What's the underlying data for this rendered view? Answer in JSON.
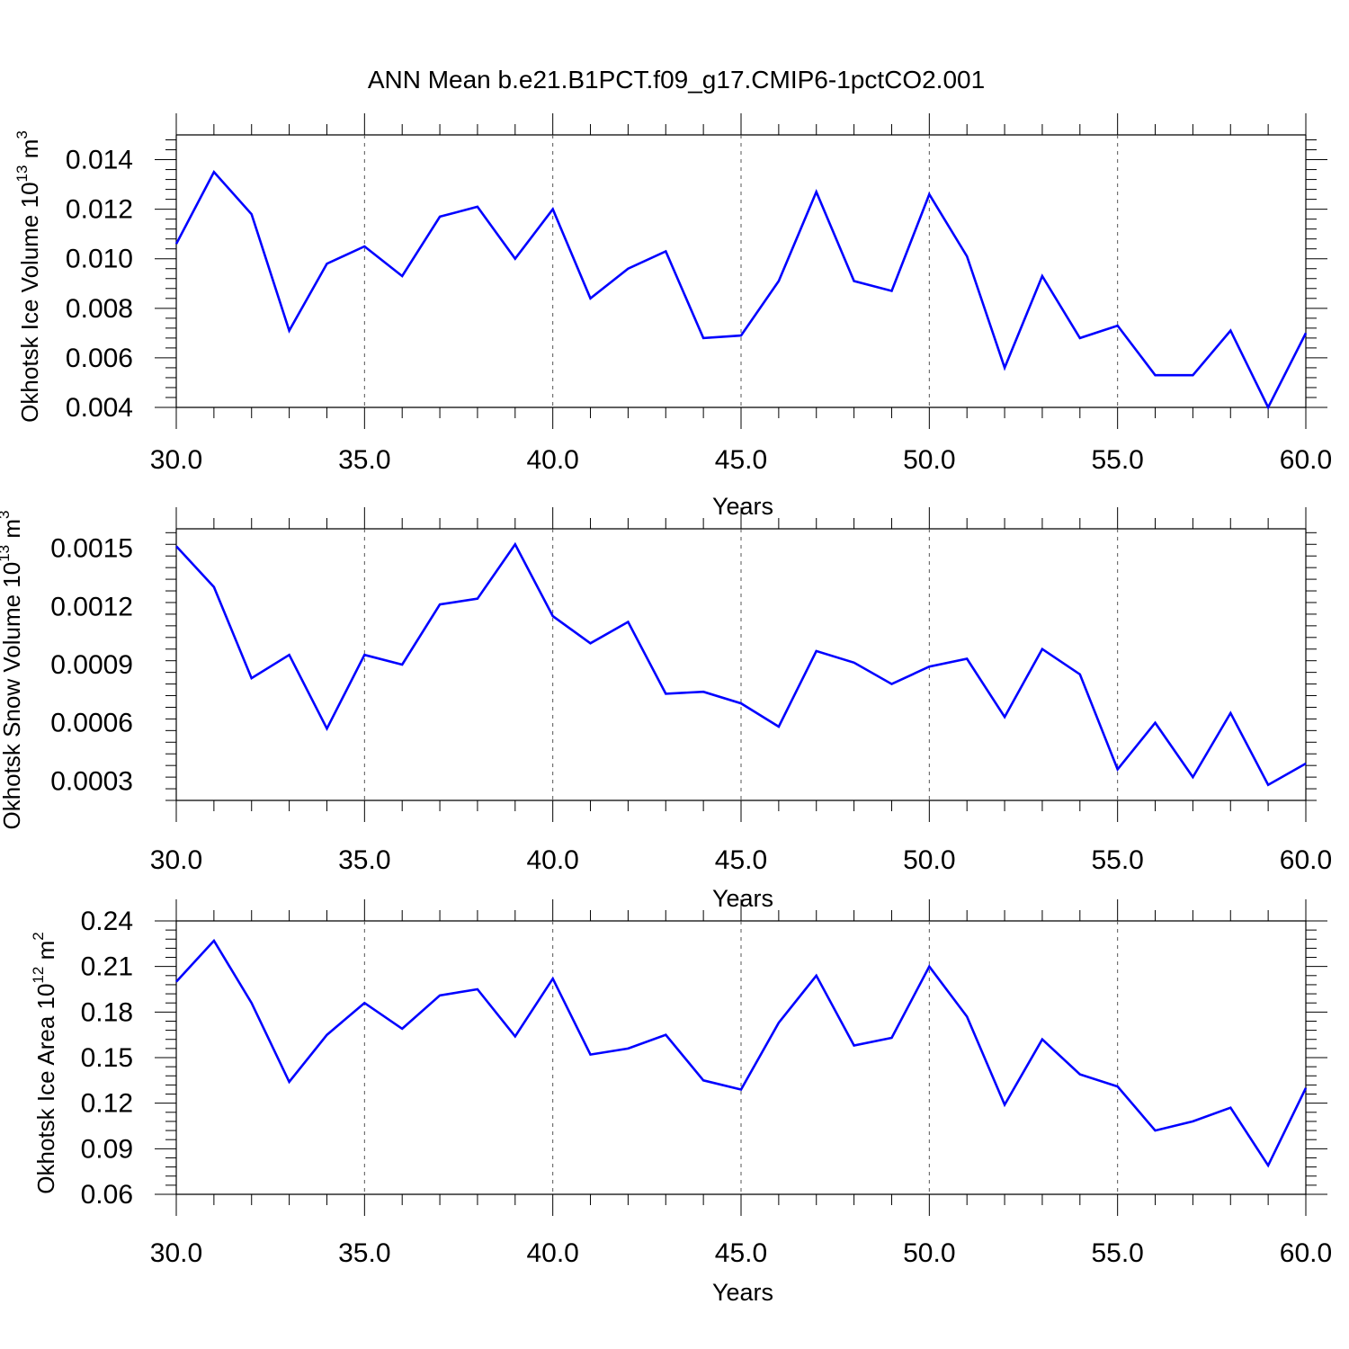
{
  "title": "ANN Mean b.e21.B1PCT.f09_g17.CMIP6-1pctCO2.001",
  "colors": {
    "line": "#0000ff",
    "axis": "#000000",
    "grid": "#555555"
  },
  "chart_data": [
    {
      "type": "line",
      "xlabel": "Years",
      "ylabel": {
        "text": "Okhotsk Ice Volume 10",
        "sup_power": "13",
        "unit": " m",
        "sup_unit": "3"
      },
      "x_ticks": [
        "30.0",
        "35.0",
        "40.0",
        "45.0",
        "50.0",
        "55.0",
        "60.0"
      ],
      "y_ticks": [
        "0.004",
        "0.006",
        "0.008",
        "0.010",
        "0.012",
        "0.014"
      ],
      "xlim": [
        30,
        60
      ],
      "ylim": [
        0.004,
        0.015
      ],
      "grid_x": true,
      "series": [
        {
          "x": [
            30,
            31,
            32,
            33,
            34,
            35,
            36,
            37,
            38,
            39,
            40,
            41,
            42,
            43,
            44,
            45,
            46,
            47,
            48,
            49,
            50,
            51,
            52,
            53,
            54,
            55,
            56,
            57,
            58,
            59,
            60
          ],
          "values": [
            0.0106,
            0.0135,
            0.0118,
            0.0071,
            0.0098,
            0.0105,
            0.0093,
            0.0117,
            0.0121,
            0.01,
            0.012,
            0.0084,
            0.0096,
            0.0103,
            0.0068,
            0.0069,
            0.0091,
            0.0127,
            0.0091,
            0.0087,
            0.0126,
            0.0101,
            0.0056,
            0.0093,
            0.0068,
            0.0073,
            0.0053,
            0.0053,
            0.0071,
            0.004,
            0.007
          ]
        }
      ]
    },
    {
      "type": "line",
      "xlabel": "Years",
      "ylabel": {
        "text": "Okhotsk Snow Volume 10",
        "sup_power": "13",
        "unit": " m",
        "sup_unit": "3"
      },
      "x_ticks": [
        "30.0",
        "35.0",
        "40.0",
        "45.0",
        "50.0",
        "55.0",
        "60.0"
      ],
      "y_ticks": [
        "0.0003",
        "0.0006",
        "0.0009",
        "0.0012",
        "0.0015"
      ],
      "xlim": [
        30,
        60
      ],
      "ylim": [
        0.0002,
        0.0016
      ],
      "grid_x": true,
      "series": [
        {
          "x": [
            30,
            31,
            32,
            33,
            34,
            35,
            36,
            37,
            38,
            39,
            40,
            41,
            42,
            43,
            44,
            45,
            46,
            47,
            48,
            49,
            50,
            51,
            52,
            53,
            54,
            55,
            56,
            57,
            58,
            59,
            60
          ],
          "values": [
            0.00151,
            0.0013,
            0.00083,
            0.00095,
            0.00057,
            0.00095,
            0.0009,
            0.00121,
            0.00124,
            0.00152,
            0.00115,
            0.00101,
            0.00112,
            0.00075,
            0.00076,
            0.0007,
            0.00058,
            0.00097,
            0.00091,
            0.0008,
            0.00089,
            0.00093,
            0.00063,
            0.00098,
            0.00085,
            0.00036,
            0.0006,
            0.00032,
            0.00065,
            0.00028,
            0.00039
          ]
        }
      ]
    },
    {
      "type": "line",
      "xlabel": "Years",
      "ylabel": {
        "text": "Okhotsk Ice Area 10",
        "sup_power": "12",
        "unit": " m",
        "sup_unit": "2"
      },
      "x_ticks": [
        "30.0",
        "35.0",
        "40.0",
        "45.0",
        "50.0",
        "55.0",
        "60.0"
      ],
      "y_ticks": [
        "0.06",
        "0.09",
        "0.12",
        "0.15",
        "0.18",
        "0.21",
        "0.24"
      ],
      "xlim": [
        30,
        60
      ],
      "ylim": [
        0.06,
        0.24
      ],
      "grid_x": true,
      "series": [
        {
          "x": [
            30,
            31,
            32,
            33,
            34,
            35,
            36,
            37,
            38,
            39,
            40,
            41,
            42,
            43,
            44,
            45,
            46,
            47,
            48,
            49,
            50,
            51,
            52,
            53,
            54,
            55,
            56,
            57,
            58,
            59,
            60
          ],
          "values": [
            0.2,
            0.227,
            0.186,
            0.134,
            0.165,
            0.186,
            0.169,
            0.191,
            0.195,
            0.164,
            0.202,
            0.152,
            0.156,
            0.165,
            0.135,
            0.129,
            0.173,
            0.204,
            0.158,
            0.163,
            0.21,
            0.177,
            0.119,
            0.162,
            0.139,
            0.131,
            0.102,
            0.108,
            0.117,
            0.079,
            0.13
          ]
        }
      ]
    }
  ]
}
